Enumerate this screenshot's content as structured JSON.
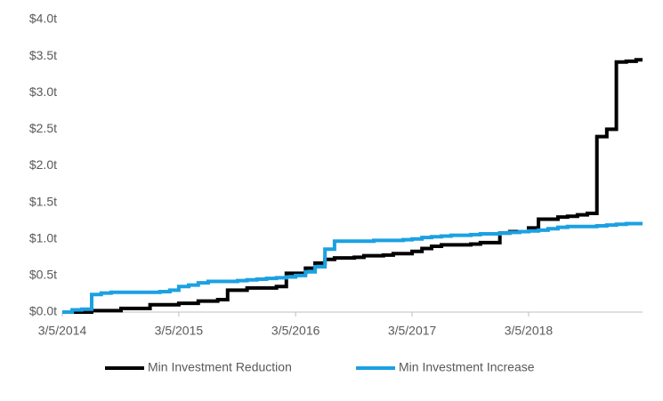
{
  "chart_data": {
    "type": "step-line",
    "x": [
      "3/5/2014",
      "4/5/2014",
      "5/5/2014",
      "6/5/2014",
      "7/5/2014",
      "8/5/2014",
      "9/5/2014",
      "10/5/2014",
      "11/5/2014",
      "12/5/2014",
      "1/5/2015",
      "2/5/2015",
      "3/5/2015",
      "4/5/2015",
      "5/5/2015",
      "6/5/2015",
      "7/5/2015",
      "8/5/2015",
      "9/5/2015",
      "10/5/2015",
      "11/5/2015",
      "12/5/2015",
      "1/5/2016",
      "2/5/2016",
      "3/5/2016",
      "4/5/2016",
      "5/5/2016",
      "6/5/2016",
      "7/5/2016",
      "8/5/2016",
      "9/5/2016",
      "10/5/2016",
      "11/5/2016",
      "12/5/2016",
      "1/5/2017",
      "2/5/2017",
      "3/5/2017",
      "4/5/2017",
      "5/5/2017",
      "6/5/2017",
      "7/5/2017",
      "8/5/2017",
      "9/5/2017",
      "10/5/2017",
      "11/5/2017",
      "12/5/2017",
      "1/5/2018",
      "2/5/2018",
      "3/5/2018",
      "4/5/2018",
      "5/5/2018",
      "6/5/2018",
      "7/5/2018",
      "8/5/2018",
      "9/5/2018",
      "10/5/2018",
      "11/5/2018",
      "12/5/2018",
      "1/5/2019",
      "2/5/2019"
    ],
    "series": [
      {
        "name": "Min Investment Reduction",
        "color": "#000000",
        "values": [
          0,
          0,
          0,
          0.02,
          0.02,
          0.02,
          0.05,
          0.05,
          0.05,
          0.1,
          0.1,
          0.1,
          0.12,
          0.12,
          0.15,
          0.15,
          0.17,
          0.3,
          0.3,
          0.33,
          0.33,
          0.33,
          0.35,
          0.53,
          0.53,
          0.6,
          0.67,
          0.72,
          0.74,
          0.74,
          0.75,
          0.77,
          0.77,
          0.78,
          0.8,
          0.8,
          0.83,
          0.87,
          0.9,
          0.92,
          0.92,
          0.92,
          0.93,
          0.95,
          0.95,
          1.08,
          1.1,
          1.1,
          1.15,
          1.27,
          1.27,
          1.3,
          1.31,
          1.33,
          1.35,
          2.4,
          2.5,
          3.42,
          3.43,
          3.45
        ]
      },
      {
        "name": "Min Investment Increase",
        "color": "#1ba1e2",
        "values": [
          0,
          0.03,
          0.04,
          0.24,
          0.26,
          0.27,
          0.27,
          0.27,
          0.27,
          0.27,
          0.28,
          0.3,
          0.35,
          0.37,
          0.4,
          0.42,
          0.42,
          0.42,
          0.43,
          0.44,
          0.45,
          0.46,
          0.47,
          0.48,
          0.5,
          0.55,
          0.62,
          0.86,
          0.97,
          0.97,
          0.97,
          0.97,
          0.98,
          0.98,
          0.98,
          0.99,
          1.0,
          1.02,
          1.03,
          1.04,
          1.05,
          1.05,
          1.06,
          1.07,
          1.07,
          1.08,
          1.09,
          1.1,
          1.11,
          1.12,
          1.14,
          1.16,
          1.17,
          1.17,
          1.17,
          1.18,
          1.19,
          1.2,
          1.21,
          1.21
        ]
      }
    ],
    "xlim": [
      "3/5/2014",
      "2/25/2019"
    ],
    "xticks": [
      "3/5/2014",
      "3/5/2015",
      "3/5/2016",
      "3/5/2017",
      "3/5/2018"
    ],
    "ylim": [
      0,
      4
    ],
    "yticks": [
      {
        "value": 0,
        "label": "$0.0t"
      },
      {
        "value": 0.5,
        "label": "$0.5t"
      },
      {
        "value": 1,
        "label": "$1.0t"
      },
      {
        "value": 1.5,
        "label": "$1.5t"
      },
      {
        "value": 2,
        "label": "$2.0t"
      },
      {
        "value": 2.5,
        "label": "$2.5t"
      },
      {
        "value": 3,
        "label": "$3.0t"
      },
      {
        "value": 3.5,
        "label": "$3.5t"
      },
      {
        "value": 4,
        "label": "$4.0t"
      }
    ],
    "grid": false,
    "legend": "bottom"
  }
}
